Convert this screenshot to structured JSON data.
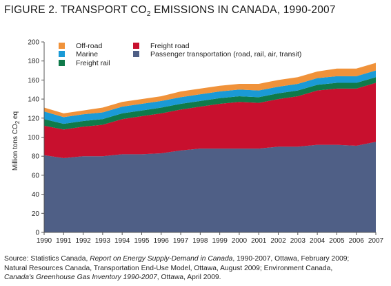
{
  "figure": {
    "title_prefix": "FIGURE 2. TRANSPORT CO",
    "title_sub": "2",
    "title_suffix": " EMISSIONS IN CANADA, 1990-2007"
  },
  "chart_data": {
    "type": "area",
    "stacked": true,
    "ylabel_prefix": "Million tons CO",
    "ylabel_sub": "2",
    "ylabel_suffix": " eq",
    "ylim": [
      0,
      200
    ],
    "yticks": [
      0,
      20,
      40,
      60,
      80,
      100,
      120,
      140,
      160,
      180,
      200
    ],
    "grid": false,
    "legend_position": "top",
    "x": [
      1990,
      1991,
      1992,
      1993,
      1994,
      1995,
      1996,
      1997,
      1998,
      1999,
      2000,
      2001,
      2002,
      2003,
      2004,
      2005,
      2006,
      2007
    ],
    "series": [
      {
        "name": "Passenger transportation (road, rail, air, transit)",
        "color": "#4f5f86",
        "values": [
          81,
          78,
          80,
          80,
          82,
          82,
          83,
          86,
          88,
          88,
          88,
          88,
          90,
          90,
          92,
          92,
          91,
          95
        ]
      },
      {
        "name": "Freight road",
        "color": "#c8102e",
        "values": [
          31,
          30,
          31,
          33,
          37,
          40,
          42,
          43,
          44,
          47,
          49,
          48,
          50,
          53,
          57,
          59,
          60,
          62
        ]
      },
      {
        "name": "Freight rail",
        "color": "#0f7a4a",
        "values": [
          7,
          6,
          6,
          6,
          6,
          6,
          6,
          6,
          6,
          6,
          6,
          6,
          6,
          6,
          6,
          6,
          6,
          6
        ]
      },
      {
        "name": "Marine",
        "color": "#1a9ad6",
        "values": [
          8,
          7,
          7,
          7,
          7,
          7,
          7,
          7,
          7,
          7,
          7,
          7,
          7,
          7,
          7,
          7,
          7,
          7
        ]
      },
      {
        "name": "Off-road",
        "color": "#f0923a",
        "values": [
          4,
          4,
          4,
          5,
          5,
          5,
          5,
          6,
          6,
          6,
          6,
          7,
          7,
          7,
          7,
          8,
          8,
          8
        ]
      }
    ]
  },
  "legend": {
    "order": [
      "Off-road",
      "Marine",
      "Freight rail",
      "Freight road",
      "Passenger transportation (road, rail, air, transit)"
    ]
  },
  "source": {
    "line1_a": "Source: Statistics Canada, ",
    "line1_b": "Report on Energy Supply-Demand in Canada",
    "line1_c": ", 1990-2007, Ottawa, February 2009;",
    "line2": "Natural Resources Canada, Transportation End-Use Model, Ottawa, August 2009; Environment Canada,",
    "line3_a": "Canada's Greenhouse Gas Inventory 1990-2007",
    "line3_b": ", Ottawa, April 2009."
  }
}
